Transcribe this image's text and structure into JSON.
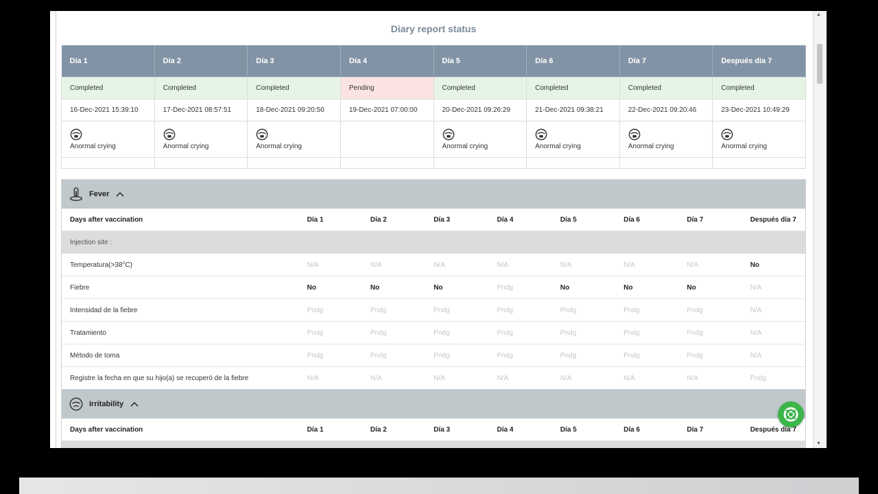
{
  "page": {
    "title": "Diary report status"
  },
  "status_table": {
    "days": [
      "Día 1",
      "Día 2",
      "Día 3",
      "Día 4",
      "Día 5",
      "Día 6",
      "Día 7",
      "Después día 7"
    ],
    "statuses": [
      "Completed",
      "Completed",
      "Completed",
      "Pending",
      "Completed",
      "Completed",
      "Completed",
      "Completed"
    ],
    "dates": [
      "16-Dec-2021 15:39:10",
      "17-Dec-2021 08:57:51",
      "18-Dec-2021 09:20:50",
      "19-Dec-2021 07:00:00",
      "20-Dec-2021 09:26:29",
      "21-Dec-2021 09:38:21",
      "22-Dec-2021 09:20:46",
      "23-Dec-2021 10:49:29"
    ],
    "symptoms": [
      "Anormal crying",
      "Anormal crying",
      "Anormal crying",
      "",
      "Anormal crying",
      "Anormal crying",
      "Anormal crying",
      "Anormal crying"
    ]
  },
  "fever": {
    "title": "Fever",
    "header": [
      "Days after vaccination",
      "Día 1",
      "Día 2",
      "Día 3",
      "Día 4",
      "Día 5",
      "Día 6",
      "Día 7",
      "Después día 7"
    ],
    "subhead": "Injection site :",
    "rows": [
      {
        "label": "Temperatura(>38°C)",
        "values": [
          "N/A",
          "N/A",
          "N/A",
          "N/A",
          "N/A",
          "N/A",
          "N/A",
          "No"
        ]
      },
      {
        "label": "Fiebre",
        "values": [
          "No",
          "No",
          "No",
          "Pndg",
          "No",
          "No",
          "No",
          "N/A"
        ]
      },
      {
        "label": "Intensidad de la fiebre",
        "values": [
          "Pndg",
          "Pndg",
          "Pndg",
          "Pndg",
          "Pndg",
          "Pndg",
          "Pndg",
          "N/A"
        ]
      },
      {
        "label": "Tratamiento",
        "values": [
          "Pndg",
          "Pndg",
          "Pndg",
          "Pndg",
          "Pndg",
          "Pndg",
          "Pndg",
          "N/A"
        ]
      },
      {
        "label": "Método de toma",
        "values": [
          "Pndg",
          "Pndg",
          "Pndg",
          "Pndg",
          "Pndg",
          "Pndg",
          "Pndg",
          "N/A"
        ]
      },
      {
        "label": "Registre la fecha en que su hijo(a) se recuperó de la fiebre",
        "values": [
          "N/A",
          "N/A",
          "N/A",
          "N/A",
          "N/A",
          "N/A",
          "N/A",
          "Pndg"
        ]
      }
    ]
  },
  "irritability": {
    "title": "Irritability",
    "header": [
      "Days after vaccination",
      "Día 1",
      "Día 2",
      "Día 3",
      "Día 4",
      "Día 5",
      "Día 6",
      "Día 7",
      "Después día 7"
    ]
  },
  "icons": {
    "fever": "thermometer-icon",
    "irritability": "crying-face-icon",
    "help": "lifebuoy-icon"
  },
  "colors": {
    "header_bg": "#8293a5",
    "completed_bg": "#e6f4e6",
    "pending_bg": "#fbe3e3",
    "section_bg": "#c1c8cc",
    "help_button": "#3cb54a"
  }
}
